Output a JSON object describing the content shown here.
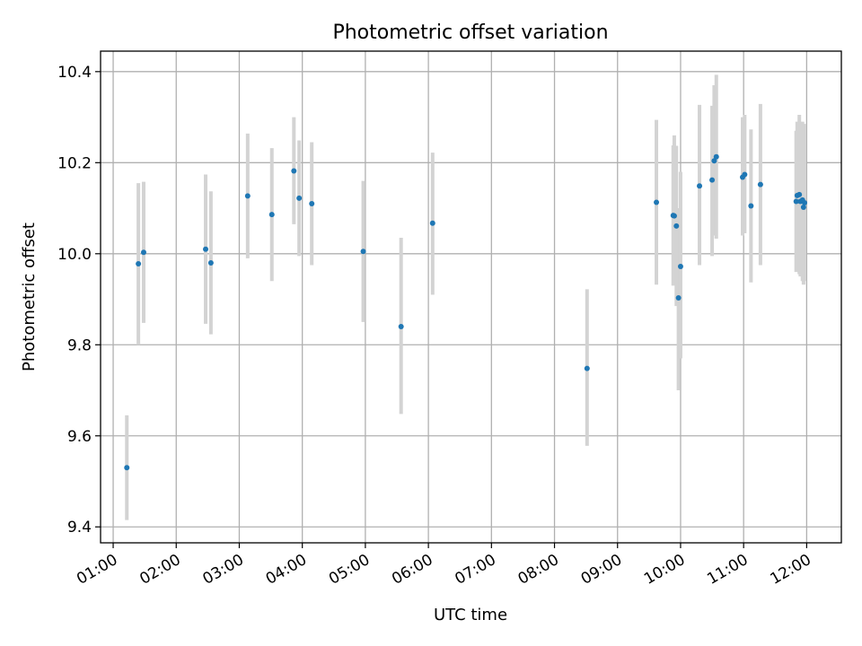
{
  "chart_data": {
    "type": "scatter",
    "title": "Photometric offset variation",
    "xlabel": "UTC time",
    "ylabel": "Photometric offset",
    "x_ticks": [
      "01:00",
      "02:00",
      "03:00",
      "04:00",
      "05:00",
      "06:00",
      "07:00",
      "08:00",
      "09:00",
      "10:00",
      "11:00",
      "12:00"
    ],
    "y_ticks": [
      9.4,
      9.6,
      9.8,
      10.0,
      10.2,
      10.4
    ],
    "y_tick_labels": [
      "9.4",
      "9.6",
      "9.8",
      "10.0",
      "10.2",
      "10.4"
    ],
    "xlim": [
      "00:48",
      "12:33"
    ],
    "ylim": [
      9.365,
      10.445
    ],
    "grid": true,
    "point_color": "#1f77b4",
    "errorbar_color": "#d3d3d3",
    "points": [
      {
        "t": "01:13",
        "y": 9.53,
        "lo": 9.415,
        "hi": 9.645
      },
      {
        "t": "01:24",
        "y": 9.978,
        "lo": 9.8,
        "hi": 10.155
      },
      {
        "t": "01:29",
        "y": 10.003,
        "lo": 9.848,
        "hi": 10.158
      },
      {
        "t": "02:28",
        "y": 10.01,
        "lo": 9.846,
        "hi": 10.174
      },
      {
        "t": "02:33",
        "y": 9.98,
        "lo": 9.823,
        "hi": 10.137
      },
      {
        "t": "03:08",
        "y": 10.127,
        "lo": 9.99,
        "hi": 10.264
      },
      {
        "t": "03:31",
        "y": 10.086,
        "lo": 9.94,
        "hi": 10.232
      },
      {
        "t": "03:52",
        "y": 10.182,
        "lo": 10.065,
        "hi": 10.3
      },
      {
        "t": "03:57",
        "y": 10.122,
        "lo": 9.995,
        "hi": 10.249
      },
      {
        "t": "04:09",
        "y": 10.11,
        "lo": 9.975,
        "hi": 10.245
      },
      {
        "t": "04:58",
        "y": 10.005,
        "lo": 9.85,
        "hi": 10.16
      },
      {
        "t": "05:34",
        "y": 9.84,
        "lo": 9.648,
        "hi": 10.035
      },
      {
        "t": "06:04",
        "y": 10.067,
        "lo": 9.91,
        "hi": 10.222
      },
      {
        "t": "08:31",
        "y": 9.748,
        "lo": 9.578,
        "hi": 9.922
      },
      {
        "t": "09:37",
        "y": 10.113,
        "lo": 9.932,
        "hi": 10.294
      },
      {
        "t": "09:53",
        "y": 10.084,
        "lo": 9.93,
        "hi": 10.238
      },
      {
        "t": "09:54",
        "y": 10.083,
        "lo": 9.94,
        "hi": 10.26
      },
      {
        "t": "09:56",
        "y": 10.061,
        "lo": 9.885,
        "hi": 10.237
      },
      {
        "t": "09:58",
        "y": 9.903,
        "lo": 9.7,
        "hi": 10.1
      },
      {
        "t": "10:00",
        "y": 9.972,
        "lo": 9.77,
        "hi": 10.18
      },
      {
        "t": "10:18",
        "y": 10.149,
        "lo": 9.975,
        "hi": 10.327
      },
      {
        "t": "10:30",
        "y": 10.162,
        "lo": 9.995,
        "hi": 10.325
      },
      {
        "t": "10:32",
        "y": 10.204,
        "lo": 10.04,
        "hi": 10.37
      },
      {
        "t": "10:34",
        "y": 10.213,
        "lo": 10.033,
        "hi": 10.393
      },
      {
        "t": "10:59",
        "y": 10.168,
        "lo": 10.04,
        "hi": 10.3
      },
      {
        "t": "11:01",
        "y": 10.174,
        "lo": 10.045,
        "hi": 10.305
      },
      {
        "t": "11:07",
        "y": 10.105,
        "lo": 9.937,
        "hi": 10.273
      },
      {
        "t": "11:16",
        "y": 10.152,
        "lo": 9.975,
        "hi": 10.329
      },
      {
        "t": "11:50",
        "y": 10.115,
        "lo": 9.96,
        "hi": 10.27
      },
      {
        "t": "11:51",
        "y": 10.128,
        "lo": 9.965,
        "hi": 10.29
      },
      {
        "t": "11:53",
        "y": 10.13,
        "lo": 9.955,
        "hi": 10.305
      },
      {
        "t": "11:54",
        "y": 10.115,
        "lo": 9.95,
        "hi": 10.28
      },
      {
        "t": "11:56",
        "y": 10.118,
        "lo": 9.94,
        "hi": 10.29
      },
      {
        "t": "11:57",
        "y": 10.102,
        "lo": 9.932,
        "hi": 10.272
      },
      {
        "t": "11:58",
        "y": 10.112,
        "lo": 9.94,
        "hi": 10.285
      }
    ]
  }
}
